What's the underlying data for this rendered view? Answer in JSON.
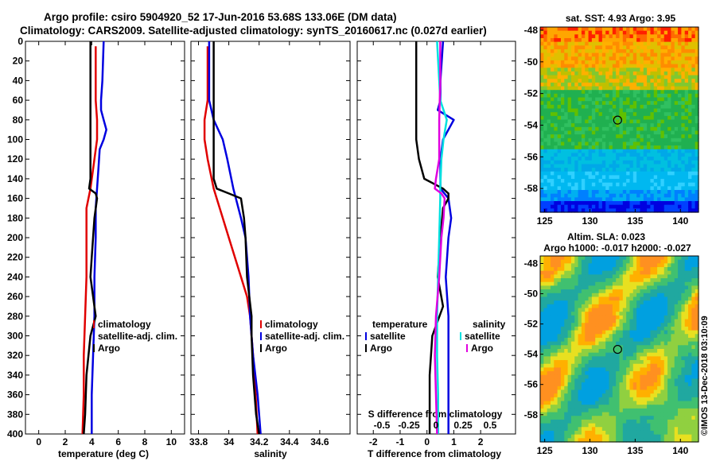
{
  "header": {
    "title_line1": "Argo profile: csiro 5904920_52 17-Jun-2016 53.68S 133.06E (DM data)",
    "title_line2": "Climatology: CARS2009. Satellite-adjusted climatology: synTS_20160617.nc (0.027d earlier)"
  },
  "colors": {
    "argo": "#000000",
    "climatology": "#e00000",
    "satellite": "#0000e0",
    "salinity": "#e000e0",
    "satellite_salinity": "#00e0e0"
  },
  "chart_data": [
    {
      "id": "temperature",
      "type": "line",
      "xlabel": "temperature (deg C)",
      "ylabel": "",
      "xlim": [
        -1,
        11
      ],
      "ylim": [
        400,
        0
      ],
      "xticks": [
        "0",
        "2",
        "4",
        "6",
        "8",
        "10"
      ],
      "yticks": [
        "0",
        "20",
        "40",
        "60",
        "80",
        "100",
        "120",
        "140",
        "160",
        "180",
        "200",
        "220",
        "240",
        "260",
        "280",
        "300",
        "320",
        "340",
        "360",
        "380",
        "400"
      ],
      "legend": [
        "climatology",
        "satellite-adj. clim.",
        "Argo"
      ],
      "series": [
        {
          "name": "climatology",
          "color": "#e00000",
          "depth": [
            5,
            40,
            60,
            80,
            100,
            120,
            150,
            170,
            200,
            240,
            280,
            320,
            360,
            400
          ],
          "values": [
            4.3,
            4.3,
            4.3,
            4.4,
            4.4,
            4.2,
            3.9,
            3.6,
            3.6,
            3.6,
            3.5,
            3.4,
            3.4,
            3.3
          ]
        },
        {
          "name": "satellite-adj. clim.",
          "color": "#0000e0",
          "depth": [
            0,
            40,
            60,
            70,
            80,
            90,
            100,
            110,
            130,
            150,
            170,
            200,
            240,
            280,
            320,
            360,
            400
          ],
          "values": [
            4.9,
            4.8,
            4.7,
            4.7,
            4.9,
            5.1,
            4.9,
            4.6,
            4.5,
            4.4,
            4.3,
            4.3,
            4.2,
            4.2,
            4.1,
            4.0,
            4.0
          ]
        },
        {
          "name": "Argo",
          "color": "#000000",
          "depth": [
            0,
            40,
            80,
            120,
            140,
            150,
            155,
            160,
            180,
            200,
            220,
            240,
            260,
            280,
            300,
            340,
            380,
            400
          ],
          "values": [
            3.9,
            3.9,
            3.9,
            3.9,
            3.9,
            3.8,
            4.3,
            4.4,
            4.2,
            4.1,
            4.0,
            3.9,
            4.1,
            4.3,
            3.9,
            3.6,
            3.5,
            3.4
          ]
        }
      ]
    },
    {
      "id": "salinity",
      "type": "line",
      "xlabel": "salinity",
      "ylabel": "",
      "xlim": [
        33.75,
        34.8
      ],
      "ylim": [
        400,
        0
      ],
      "xticks": [
        "33.8",
        "34",
        "34.2",
        "34.4",
        "34.6"
      ],
      "legend": [
        "climatology",
        "satellite-adj. clim.",
        "Argo"
      ],
      "series": [
        {
          "name": "climatology",
          "color": "#e00000",
          "depth": [
            5,
            60,
            80,
            100,
            120,
            150,
            180,
            200,
            240,
            260,
            280,
            300,
            340,
            400
          ],
          "values": [
            33.86,
            33.86,
            33.84,
            33.84,
            33.86,
            33.9,
            33.96,
            34.0,
            34.08,
            34.12,
            34.14,
            34.15,
            34.17,
            34.19
          ]
        },
        {
          "name": "satellite-adj. clim.",
          "color": "#0000e0",
          "depth": [
            0,
            60,
            80,
            100,
            120,
            150,
            180,
            200,
            240,
            280,
            320,
            360,
            400
          ],
          "values": [
            33.87,
            33.87,
            33.9,
            33.96,
            33.99,
            34.03,
            34.08,
            34.11,
            34.13,
            34.14,
            34.16,
            34.19,
            34.21
          ]
        },
        {
          "name": "Argo",
          "color": "#000000",
          "depth": [
            0,
            100,
            140,
            150,
            155,
            160,
            180,
            200,
            240,
            280,
            300,
            340,
            380,
            400
          ],
          "values": [
            33.9,
            33.9,
            33.9,
            33.92,
            34.0,
            34.08,
            34.1,
            34.11,
            34.12,
            34.15,
            34.15,
            34.16,
            34.18,
            34.2
          ]
        }
      ]
    },
    {
      "id": "difference",
      "type": "line",
      "xlabel": "T difference from climatology",
      "x2label": "S difference from climatology",
      "xlim": [
        -2.6,
        3.3
      ],
      "ylim": [
        400,
        0
      ],
      "xticks": [
        "-2",
        "-1",
        "0",
        "1",
        "2"
      ],
      "x2ticks": [
        "-0.5",
        "-0.25",
        "0",
        "0.25",
        "0.5"
      ],
      "legend_temperature": [
        "temperature",
        "satellite",
        "Argo"
      ],
      "legend_salinity": [
        "salinity",
        "satellite",
        "Argo"
      ],
      "series": [
        {
          "name": "T satellite",
          "color": "#0000e0",
          "depth": [
            0,
            40,
            60,
            70,
            80,
            100,
            120,
            150,
            160,
            180,
            200,
            240,
            280,
            320,
            360,
            400
          ],
          "values": [
            0.6,
            0.5,
            0.5,
            0.4,
            1.0,
            0.6,
            0.5,
            0.5,
            0.8,
            0.9,
            0.8,
            0.7,
            0.8,
            0.8,
            0.8,
            0.8
          ]
        },
        {
          "name": "T Argo",
          "color": "#000000",
          "depth": [
            0,
            30,
            60,
            80,
            100,
            120,
            140,
            150,
            155,
            160,
            170,
            200,
            240,
            270,
            300,
            340,
            400
          ],
          "values": [
            -0.4,
            -0.4,
            -0.4,
            -0.4,
            -0.4,
            -0.3,
            -0.1,
            0.6,
            0.8,
            0.8,
            0.6,
            0.5,
            0.4,
            0.6,
            0.2,
            0.1,
            0.1
          ]
        },
        {
          "name": "S satellite",
          "color": "#00e0e0",
          "depth": [
            0,
            60,
            80,
            100,
            120,
            150,
            160,
            200,
            240,
            280,
            320,
            360,
            400
          ],
          "values": [
            0.01,
            0.04,
            0.1,
            0.07,
            0.05,
            0.04,
            0.04,
            0.03,
            0.02,
            0.01,
            0.01,
            0.02,
            0.02
          ]
        },
        {
          "name": "S Argo",
          "color": "#e000e0",
          "depth": [
            0,
            40,
            80,
            100,
            120,
            140,
            150,
            155,
            160,
            180,
            200,
            240,
            280,
            320,
            360,
            400
          ],
          "values": [
            0.04,
            0.04,
            0.03,
            0.03,
            0.03,
            0.0,
            -0.01,
            0.05,
            0.08,
            0.07,
            0.05,
            0.03,
            0.0,
            -0.01,
            0.0,
            0.01
          ]
        }
      ]
    },
    {
      "id": "sst_map",
      "type": "heatmap",
      "title": "sat. SST: 4.93 Argo: 3.95",
      "xlim": [
        124.5,
        142
      ],
      "ylim": [
        -59.5,
        -47.8
      ],
      "xticks": [
        "125",
        "130",
        "135",
        "140"
      ],
      "yticks": [
        "-48",
        "-50",
        "-52",
        "-54",
        "-56",
        "-58"
      ],
      "marker": {
        "lon": 133.06,
        "lat": -53.68
      }
    },
    {
      "id": "sla_map",
      "type": "heatmap",
      "title": "Altim. SLA: 0.023",
      "subtitle": "Argo h1000: -0.017 h2000: -0.027",
      "xlim": [
        124.5,
        142
      ],
      "ylim": [
        -59.8,
        -47.5
      ],
      "xticks": [
        "125",
        "130",
        "135",
        "140"
      ],
      "yticks": [
        "-48",
        "-50",
        "-52",
        "-54",
        "-56",
        "-58"
      ],
      "marker": {
        "lon": 133.06,
        "lat": -53.68
      }
    }
  ],
  "footer": {
    "credit": "©IMOS 13-Dec-2018 03:10:09"
  }
}
